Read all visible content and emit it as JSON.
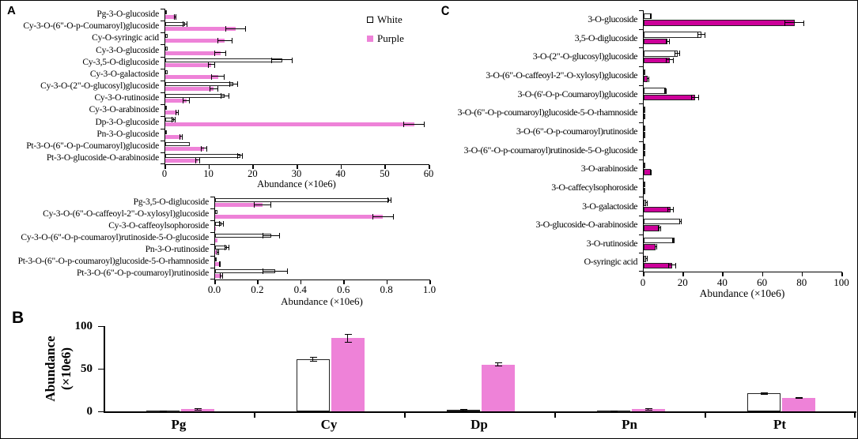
{
  "figure": {
    "panel_a_label": "A",
    "panel_b_label": "B",
    "panel_c_label": "C"
  },
  "legend": {
    "items": [
      {
        "label": "White",
        "swatch_fill": "#ffffff",
        "swatch_border": "#000000"
      },
      {
        "label": "Purple",
        "swatch_fill": "#ee82d8",
        "swatch_border": ""
      }
    ]
  },
  "colors": {
    "white_bar": "#ffffff",
    "purple_bar_ab": "#ee82d8",
    "purple_bar_c": "#cc0099",
    "bar_border": "#222222",
    "axis": "#000000"
  },
  "chart_data": [
    {
      "id": "a-top",
      "type": "bar",
      "orientation": "horizontal",
      "xlabel": "Abundance (×10e6)",
      "xlim": [
        0,
        60
      ],
      "xticks": [
        "0",
        "10",
        "20",
        "30",
        "40",
        "50",
        "60"
      ],
      "grid": false,
      "legend_position": "top-right",
      "categories": [
        "Pg-3-O-glucoside",
        "Cy-3-O-(6\"-O-p-Coumaroyl)glucoside",
        "Cy-O-syringic acid",
        "Cy-3-O-glucoside",
        "Cy-3,5-O-diglucoside",
        "Cy-3-O-galactoside",
        "Cy-3-O-(2\"-O-glucosyl)glucoside",
        "Cy-3-O-rutinoside",
        "Cy-3-O-arabinoside",
        "Dp-3-O-glucoside",
        "Pn-3-O-glucoside",
        "Pt-3-O-(6\"-O-p-Coumaroyl)glucoside",
        "Pt-3-O-glucoside-O-arabinoside"
      ],
      "series": [
        {
          "name": "White",
          "color": "#ffffff",
          "border": "#222222",
          "values": [
            0.2,
            4.5,
            0.6,
            0.6,
            26.5,
            0.6,
            15.5,
            13.5,
            0.3,
            1.9,
            0.3,
            5.6,
            17.0
          ],
          "errors": [
            0,
            0.5,
            0,
            0,
            2.5,
            0,
            1.0,
            1.0,
            0,
            0.5,
            0,
            0,
            0.6
          ]
        },
        {
          "name": "Purple",
          "color": "#ee82d8",
          "border": "",
          "values": [
            2.3,
            16.0,
            13.5,
            12.5,
            10.5,
            12.0,
            11.0,
            4.8,
            2.7,
            56.5,
            3.6,
            8.8,
            7.4
          ],
          "errors": [
            0.3,
            2.3,
            1.7,
            1.3,
            0.8,
            1.5,
            1.0,
            0.8,
            0.3,
            2.5,
            0.3,
            0.8,
            0.5
          ]
        }
      ]
    },
    {
      "id": "a-bottom",
      "type": "bar",
      "orientation": "horizontal",
      "xlabel": "Abundance (×10e6)",
      "xlim": [
        0,
        1.0
      ],
      "xticks": [
        "0.0",
        "0.2",
        "0.4",
        "0.6",
        "0.8",
        "1.0"
      ],
      "grid": false,
      "categories": [
        "Pg-3,5-O-diglucoside",
        "Cy-3-O-(6\"-O-caffeoyl-2\"-O-xylosyl)glucoside",
        "Cy-3-O-caffeoylsophoroside",
        "Cy-3-O-(6\"-O-p-coumaroyl)rutinoside-5-O-glucoside",
        "Pn-3-O-rutinoside",
        "Pt-3-O-(6\"-O-p-coumaroyl)glucoside-5-O-rhamnoside",
        "Pt-3-O-(6\"-O-p-coumaroyl)rutinoside"
      ],
      "series": [
        {
          "name": "White",
          "color": "#ffffff",
          "border": "#222222",
          "values": [
            0.81,
            0.01,
            0.03,
            0.26,
            0.055,
            0.005,
            0.28
          ],
          "errors": [
            0.01,
            0,
            0.01,
            0.04,
            0.012,
            0,
            0.06
          ]
        },
        {
          "name": "Purple",
          "color": "#ee82d8",
          "border": "",
          "values": [
            0.22,
            0.78,
            0.005,
            0.01,
            0.012,
            0.022,
            0.03
          ],
          "errors": [
            0.04,
            0.05,
            0,
            0,
            0.005,
            0.005,
            0.008
          ]
        }
      ]
    },
    {
      "id": "c",
      "type": "bar",
      "orientation": "horizontal",
      "xlabel": "Abundance (×10e6)",
      "xlim": [
        0,
        100
      ],
      "xticks": [
        "0",
        "20",
        "40",
        "60",
        "80",
        "100"
      ],
      "grid": false,
      "categories": [
        "3-O-glucoside",
        "3,5-O-diglucoside",
        "3-O-(2\"-O-glucosyl)glucoside",
        "3-O-(6\"-O-caffeoyl-2\"-O-xylosyl)glucoside",
        "3-O-(6'-O-p-Coumaroyl)glucoside",
        "3-O-(6\"-O-p-coumaroyl)glucoside-5-O-rhamnoside",
        "3-O-(6\"-O-p-coumaroyl)rutinoside",
        "3-O-(6\"-O-p-coumaroyl)rutinoside-5-O-glucoside",
        "3-O-arabinoside",
        "3-O-caffecylsophoroside",
        "3-O-galactoside",
        "3-O-glucoside-O-arabinoside",
        "3-O-rutinoside",
        "O-syringic acid"
      ],
      "series": [
        {
          "name": "White",
          "color": "#ffffff",
          "border": "#222222",
          "values": [
            3.5,
            29.0,
            17.0,
            0.3,
            11.0,
            0.2,
            0.2,
            0.3,
            0.2,
            0.2,
            1.0,
            18.5,
            15.0,
            1.0
          ],
          "errors": [
            0.5,
            2.0,
            1.5,
            0,
            0.5,
            0,
            0,
            0,
            0,
            0,
            0.2,
            0.5,
            0.5,
            0.2
          ]
        },
        {
          "name": "Purple",
          "color": "#cc0099",
          "border": "#222222",
          "values": [
            76.0,
            12.0,
            13.0,
            2.0,
            26.0,
            0.3,
            0.3,
            0.3,
            3.4,
            0.2,
            13.5,
            8.0,
            6.0,
            14.5
          ],
          "errors": [
            5.0,
            1.0,
            2.0,
            0.3,
            2.0,
            0,
            0,
            0,
            0.4,
            0,
            1.5,
            0.8,
            0.6,
            2.0
          ]
        }
      ]
    },
    {
      "id": "b",
      "type": "bar",
      "orientation": "vertical",
      "ylabel_lines": [
        "Abundance",
        "(×10e6)"
      ],
      "ylim": [
        0,
        100
      ],
      "yticks": [
        "0",
        "50",
        "100"
      ],
      "grid": false,
      "categories": [
        "Pg",
        "Cy",
        "Dp",
        "Pn",
        "Pt"
      ],
      "series": [
        {
          "name": "White",
          "color": "#ffffff",
          "border": "#222222",
          "values": [
            1.0,
            61.0,
            2.0,
            1.0,
            21.0
          ],
          "errors": [
            0.3,
            3.0,
            0.5,
            0.3,
            1.0
          ]
        },
        {
          "name": "Purple",
          "color": "#ee82d8",
          "border": "",
          "values": [
            3.0,
            86.0,
            55.0,
            3.0,
            16.0
          ],
          "errors": [
            0.5,
            5.0,
            2.5,
            0.5,
            1.0
          ]
        }
      ]
    }
  ]
}
